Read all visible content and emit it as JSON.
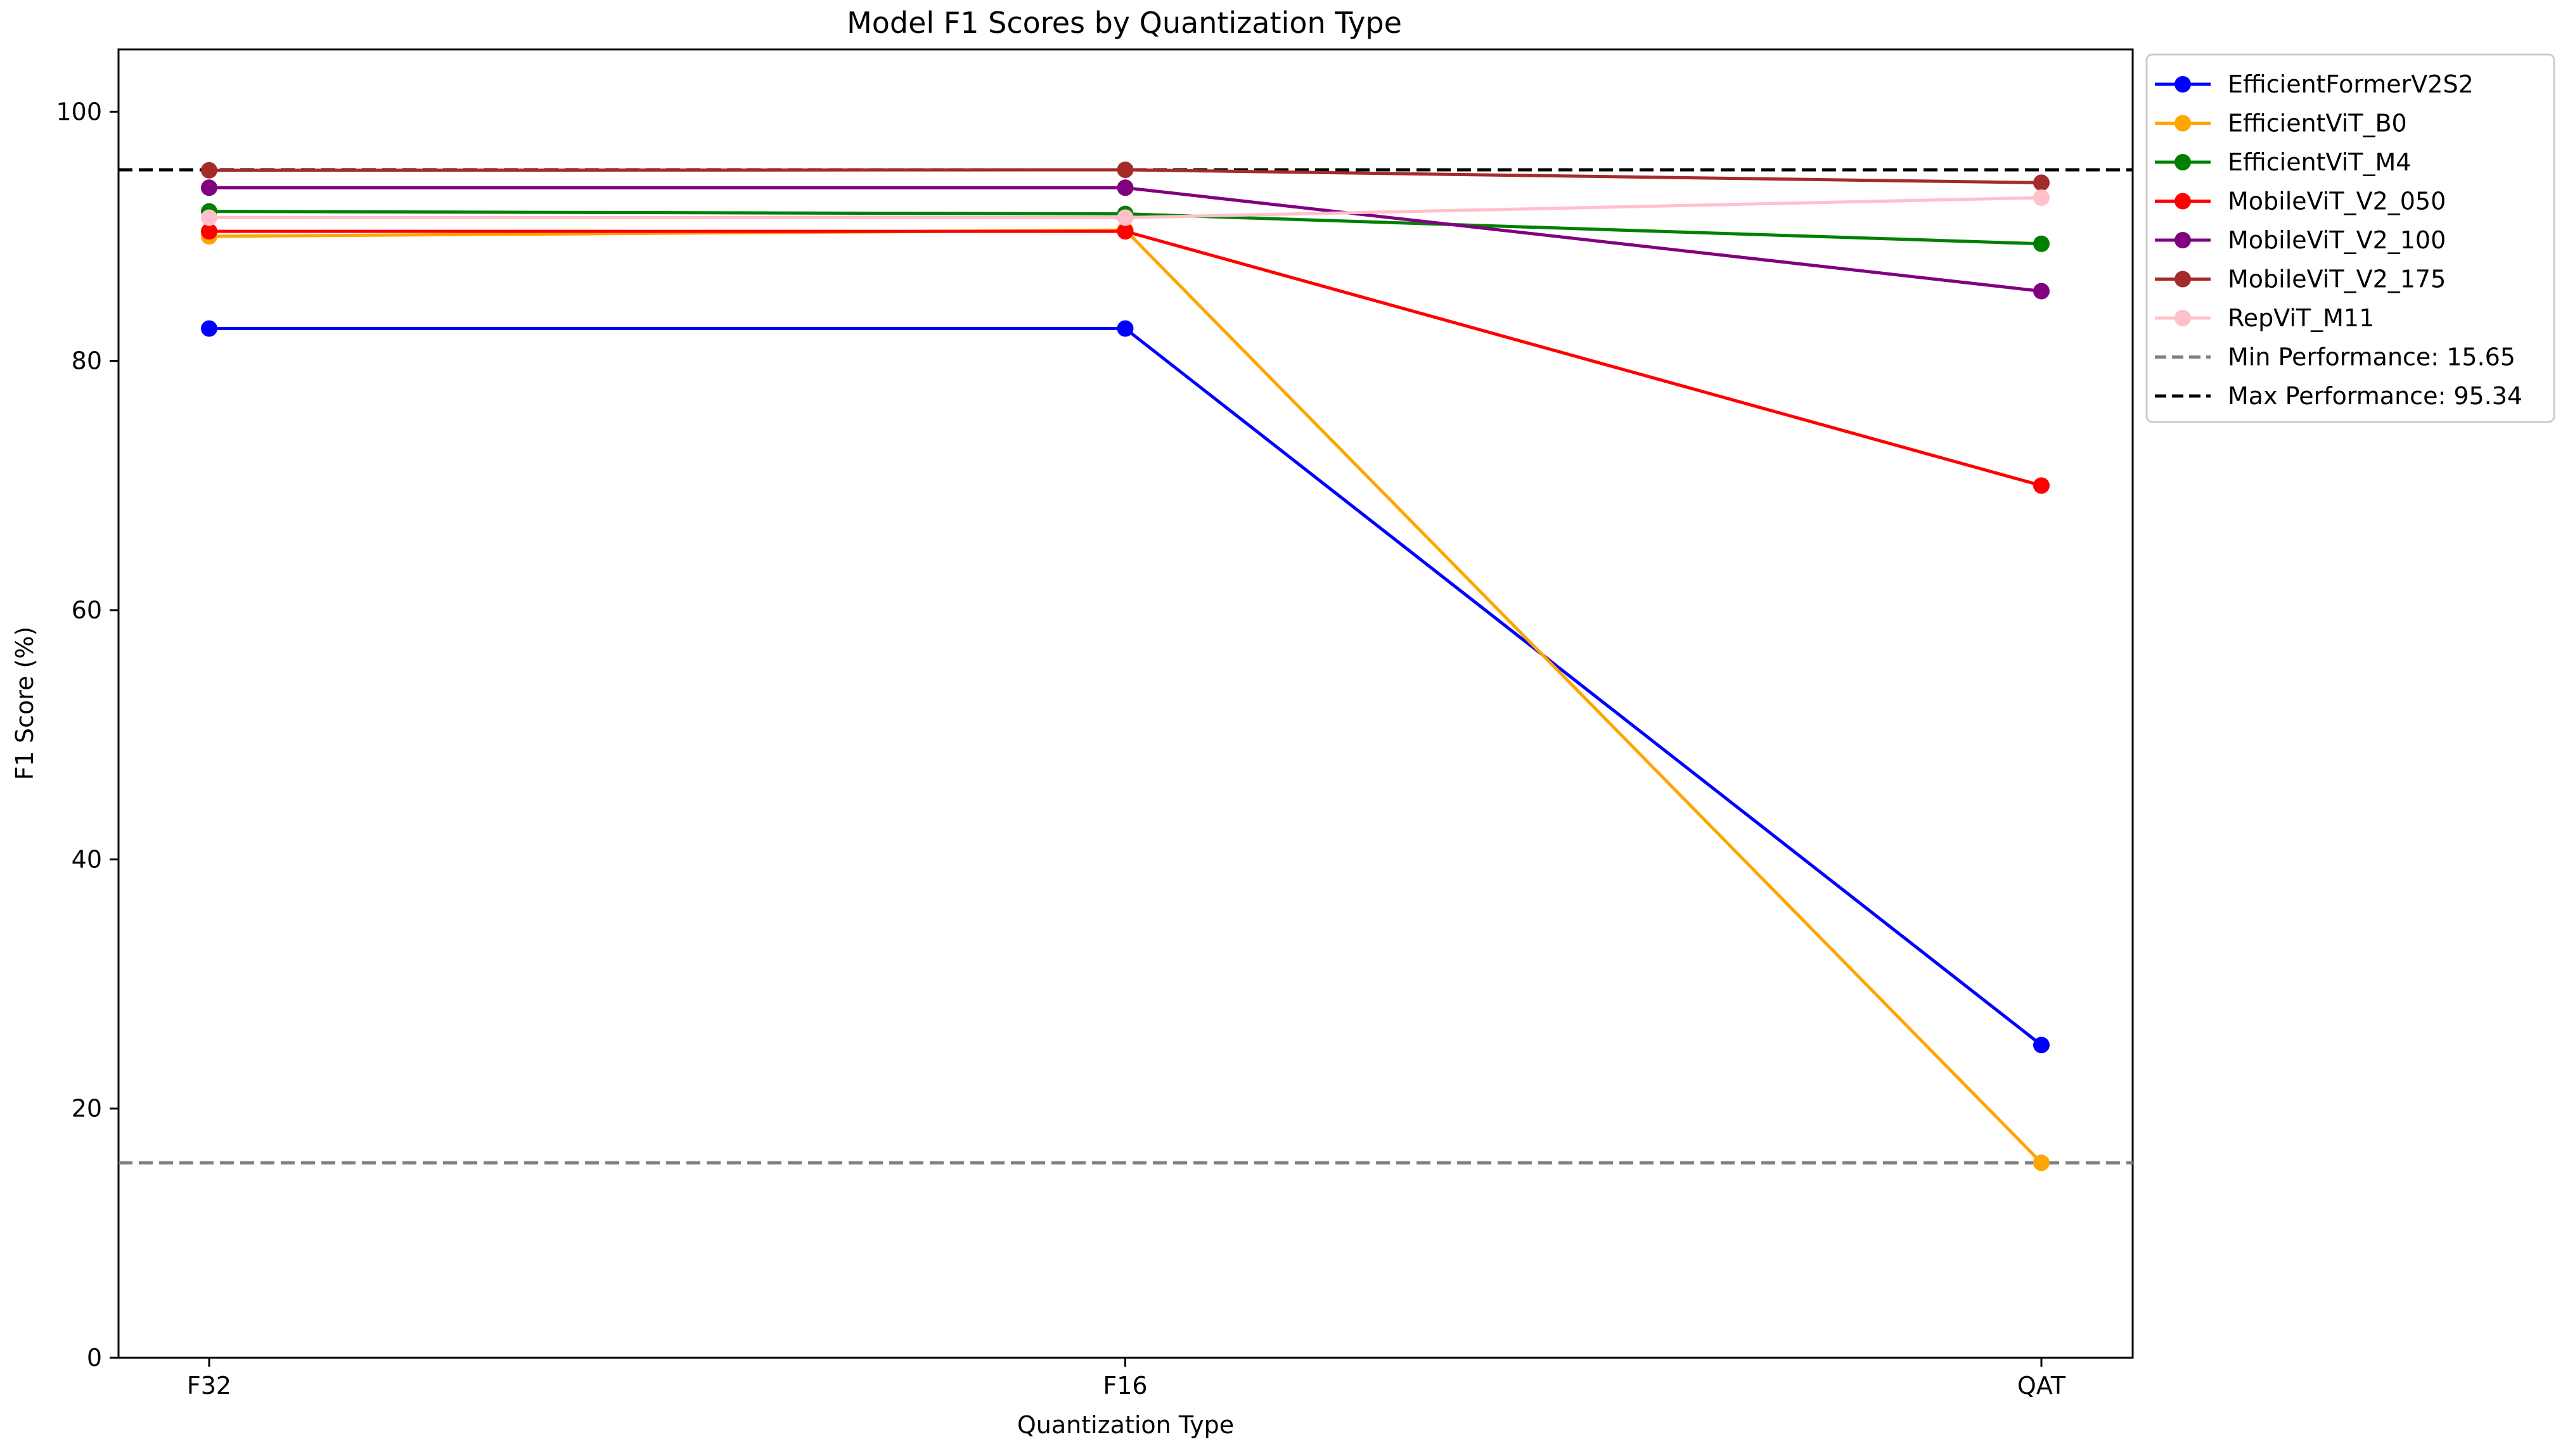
{
  "chart_data": {
    "type": "line",
    "title": "Model F1 Scores by Quantization Type",
    "xlabel": "Quantization Type",
    "ylabel": "F1 Score (%)",
    "categories": [
      "F32",
      "F16",
      "QAT"
    ],
    "ylim": [
      0,
      105
    ],
    "yticks": [
      0,
      20,
      40,
      60,
      80,
      100
    ],
    "grid": false,
    "legend_position": "outside-top-right",
    "series": [
      {
        "name": "EfficientFormerV2S2",
        "color": "#0000ff",
        "values": [
          82.6,
          82.6,
          25.1
        ]
      },
      {
        "name": "EfficientViT_B0",
        "color": "#ffa500",
        "values": [
          90.0,
          90.5,
          15.65
        ]
      },
      {
        "name": "EfficientViT_M4",
        "color": "#008000",
        "values": [
          92.0,
          91.8,
          89.4
        ]
      },
      {
        "name": "MobileViT_V2_050",
        "color": "#ff0000",
        "values": [
          90.4,
          90.4,
          70.0
        ]
      },
      {
        "name": "MobileViT_V2_100",
        "color": "#800080",
        "values": [
          93.9,
          93.9,
          85.6
        ]
      },
      {
        "name": "MobileViT_V2_175",
        "color": "#a52a2a",
        "values": [
          95.3,
          95.34,
          94.3
        ]
      },
      {
        "name": "RepViT_M11",
        "color": "#ffc0cb",
        "values": [
          91.5,
          91.5,
          93.1
        ]
      }
    ],
    "reference_lines": [
      {
        "name": "Min Performance: 15.65",
        "value": 15.65,
        "color": "#808080",
        "style": "dashed"
      },
      {
        "name": "Max Performance: 95.34",
        "value": 95.34,
        "color": "#000000",
        "style": "dashed"
      }
    ]
  }
}
